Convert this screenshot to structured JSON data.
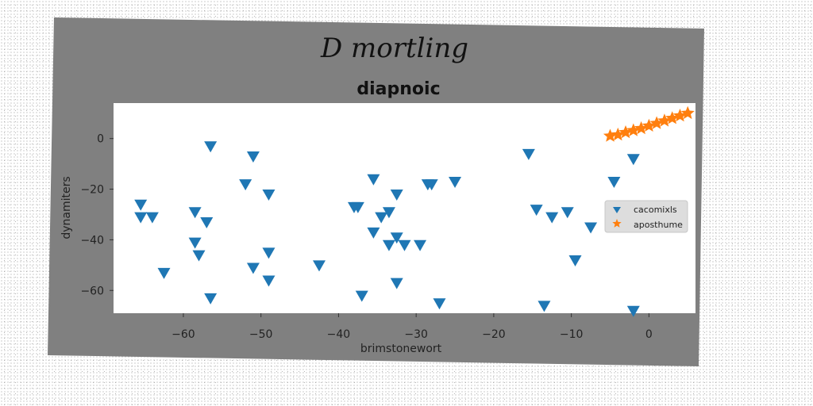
{
  "chart_data": {
    "type": "scatter",
    "suptitle": "D mortling",
    "title": "diapnoic",
    "xlabel": "brimstonewort",
    "ylabel": "dynamiters",
    "xlim": [
      -69,
      6
    ],
    "ylim": [
      -69,
      14
    ],
    "xticks": [
      -60,
      -50,
      -40,
      -30,
      -20,
      -10,
      0
    ],
    "yticks": [
      0,
      -20,
      -40,
      -60
    ],
    "legend_position": "right",
    "series": [
      {
        "name": "cacomixls",
        "marker": "triangle-down",
        "color": "#1f77b4",
        "points": [
          [
            -65.5,
            -26
          ],
          [
            -65.5,
            -31
          ],
          [
            -64,
            -31
          ],
          [
            -62.5,
            -53
          ],
          [
            -58.5,
            -29
          ],
          [
            -58.5,
            -41
          ],
          [
            -58,
            -46
          ],
          [
            -57,
            -33
          ],
          [
            -56.5,
            -3
          ],
          [
            -56.5,
            -63
          ],
          [
            -52,
            -18
          ],
          [
            -51,
            -7
          ],
          [
            -51,
            -51
          ],
          [
            -49,
            -22
          ],
          [
            -49,
            -45
          ],
          [
            -49,
            -56
          ],
          [
            -42.5,
            -50
          ],
          [
            -38,
            -27
          ],
          [
            -37.5,
            -27
          ],
          [
            -37,
            -62
          ],
          [
            -35.5,
            -16
          ],
          [
            -35.5,
            -37
          ],
          [
            -34.5,
            -31
          ],
          [
            -33.5,
            -29
          ],
          [
            -33.5,
            -42
          ],
          [
            -32.5,
            -22
          ],
          [
            -32.5,
            -39
          ],
          [
            -32.5,
            -57
          ],
          [
            -31.5,
            -42
          ],
          [
            -29.5,
            -42
          ],
          [
            -28.5,
            -18
          ],
          [
            -28,
            -18
          ],
          [
            -27,
            -65
          ],
          [
            -25,
            -17
          ],
          [
            -15.5,
            -6
          ],
          [
            -14.5,
            -28
          ],
          [
            -13.5,
            -66
          ],
          [
            -12.5,
            -31
          ],
          [
            -10.5,
            -29
          ],
          [
            -9.5,
            -48
          ],
          [
            -7.5,
            -35
          ],
          [
            -4.5,
            -17
          ],
          [
            -2,
            -8
          ],
          [
            -2,
            -68
          ]
        ]
      },
      {
        "name": "aposthume",
        "marker": "star",
        "color": "#ff7f0e",
        "points": [
          [
            -5,
            1
          ],
          [
            -4,
            1.5
          ],
          [
            -3,
            2.4
          ],
          [
            -2,
            3.2
          ],
          [
            -1,
            4
          ],
          [
            0,
            5
          ],
          [
            1,
            6
          ],
          [
            2,
            7
          ],
          [
            3,
            8
          ],
          [
            4,
            9
          ],
          [
            5,
            10
          ]
        ]
      }
    ]
  }
}
